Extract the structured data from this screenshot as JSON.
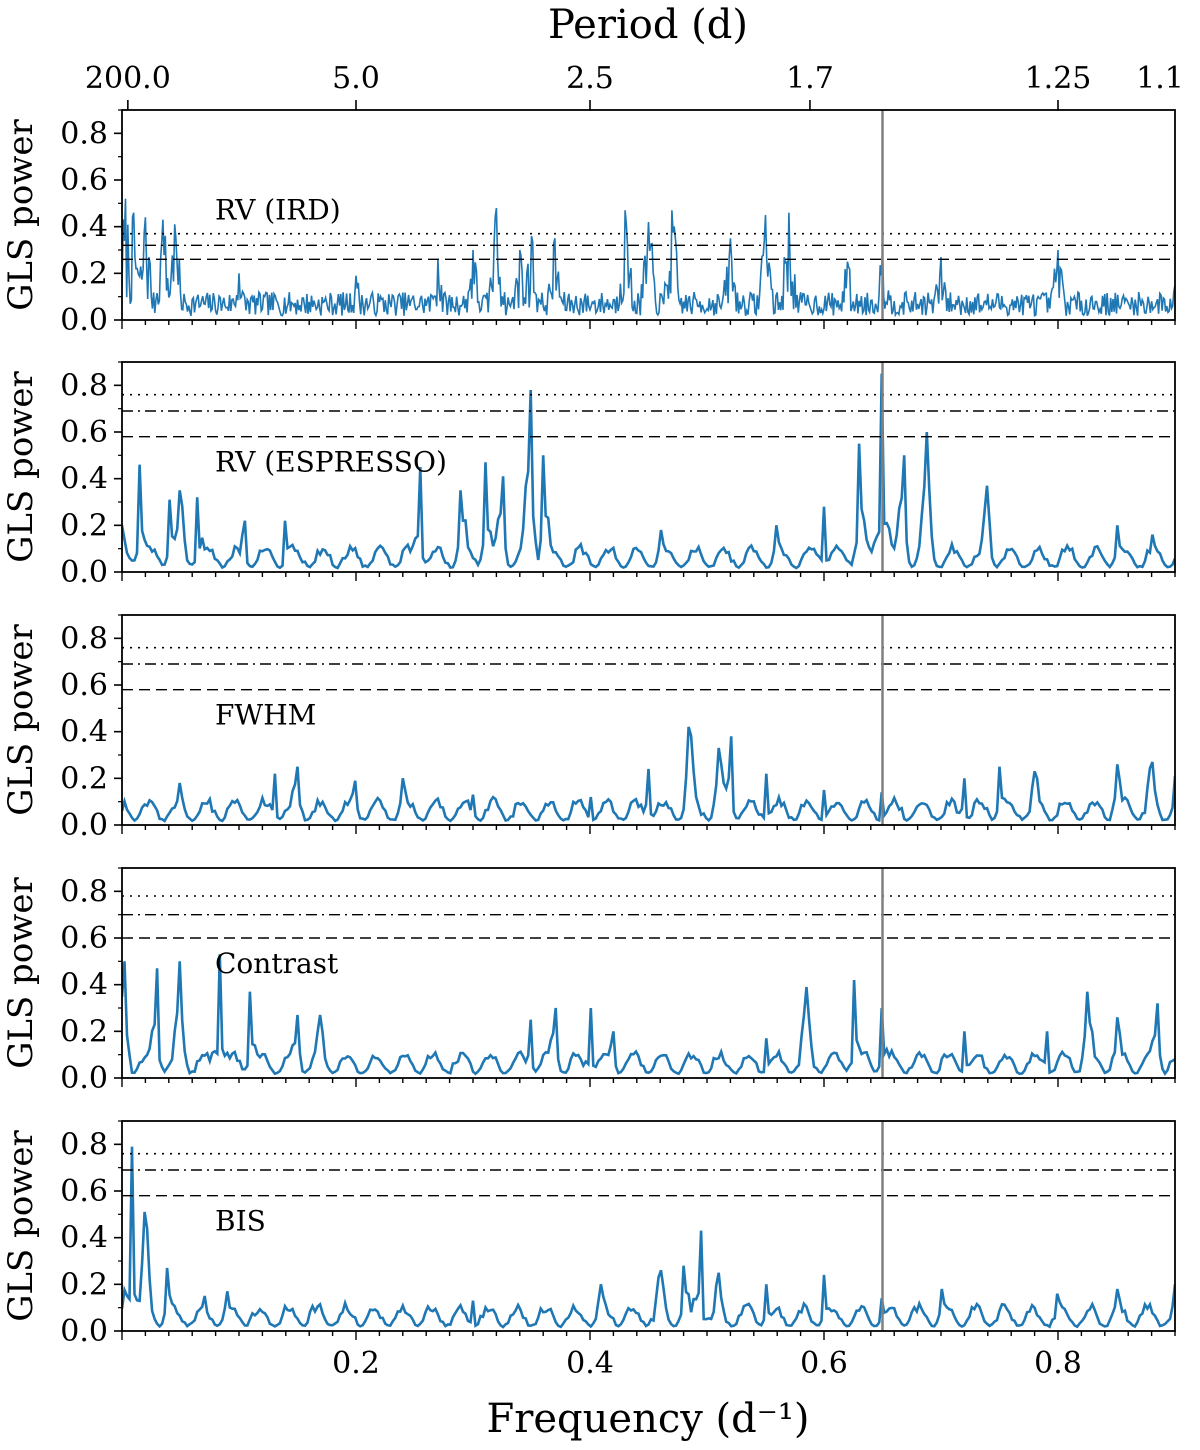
{
  "chart_data": {
    "type": "line",
    "top_axis": {
      "title": "Period (d)",
      "ticks": [
        {
          "label": "200.0",
          "freq": 0.005
        },
        {
          "label": "5.0",
          "freq": 0.2
        },
        {
          "label": "2.5",
          "freq": 0.4
        },
        {
          "label": "1.7",
          "freq": 0.588
        },
        {
          "label": "1.25",
          "freq": 0.8
        },
        {
          "label": "1.1",
          "freq": 0.909
        }
      ]
    },
    "x_axis": {
      "title": "Frequency (d⁻¹)",
      "xlim": [
        0.0,
        0.9
      ],
      "ticks": [
        {
          "label": "0.2",
          "value": 0.2
        },
        {
          "label": "0.4",
          "value": 0.4
        },
        {
          "label": "0.6",
          "value": 0.6
        },
        {
          "label": "0.8",
          "value": 0.8
        }
      ]
    },
    "y_axis": {
      "label": "GLS power",
      "ylim": [
        0.0,
        0.9
      ],
      "ticks": [
        "0.0",
        "0.2",
        "0.4",
        "0.6",
        "0.8"
      ]
    },
    "vertical_line_freq": 0.65,
    "line_color": "#1f77b4",
    "panels": [
      {
        "name": "RV (IRD)",
        "fap_levels": {
          "dashed": 0.26,
          "dashdot": 0.32,
          "dotted": 0.37
        },
        "peaks": [
          [
            0.003,
            0.52
          ],
          [
            0.01,
            0.46
          ],
          [
            0.02,
            0.44
          ],
          [
            0.035,
            0.43
          ],
          [
            0.045,
            0.41
          ],
          [
            0.1,
            0.2
          ],
          [
            0.2,
            0.19
          ],
          [
            0.27,
            0.26
          ],
          [
            0.3,
            0.3
          ],
          [
            0.32,
            0.48
          ],
          [
            0.34,
            0.3
          ],
          [
            0.35,
            0.36
          ],
          [
            0.37,
            0.35
          ],
          [
            0.43,
            0.47
          ],
          [
            0.45,
            0.42
          ],
          [
            0.47,
            0.47
          ],
          [
            0.52,
            0.35
          ],
          [
            0.55,
            0.45
          ],
          [
            0.57,
            0.46
          ],
          [
            0.62,
            0.25
          ],
          [
            0.65,
            0.3
          ],
          [
            0.7,
            0.27
          ],
          [
            0.8,
            0.3
          ],
          [
            0.9,
            0.15
          ]
        ]
      },
      {
        "name": "RV (ESPRESSO)",
        "fap_levels": {
          "dashed": 0.58,
          "dashdot": 0.69,
          "dotted": 0.76
        },
        "peaks": [
          [
            0.0,
            0.2
          ],
          [
            0.015,
            0.46
          ],
          [
            0.04,
            0.31
          ],
          [
            0.05,
            0.35
          ],
          [
            0.065,
            0.32
          ],
          [
            0.105,
            0.22
          ],
          [
            0.14,
            0.22
          ],
          [
            0.255,
            0.45
          ],
          [
            0.29,
            0.35
          ],
          [
            0.31,
            0.47
          ],
          [
            0.325,
            0.41
          ],
          [
            0.35,
            0.78
          ],
          [
            0.36,
            0.5
          ],
          [
            0.46,
            0.18
          ],
          [
            0.56,
            0.2
          ],
          [
            0.6,
            0.28
          ],
          [
            0.63,
            0.55
          ],
          [
            0.65,
            0.85
          ],
          [
            0.668,
            0.5
          ],
          [
            0.688,
            0.6
          ],
          [
            0.74,
            0.37
          ],
          [
            0.85,
            0.2
          ],
          [
            0.88,
            0.16
          ]
        ]
      },
      {
        "name": "FWHM",
        "fap_levels": {
          "dashed": 0.58,
          "dashdot": 0.69,
          "dotted": 0.76
        },
        "peaks": [
          [
            0.0,
            0.06
          ],
          [
            0.05,
            0.18
          ],
          [
            0.13,
            0.22
          ],
          [
            0.15,
            0.25
          ],
          [
            0.2,
            0.19
          ],
          [
            0.24,
            0.2
          ],
          [
            0.3,
            0.13
          ],
          [
            0.4,
            0.12
          ],
          [
            0.45,
            0.24
          ],
          [
            0.485,
            0.42
          ],
          [
            0.51,
            0.33
          ],
          [
            0.52,
            0.38
          ],
          [
            0.55,
            0.22
          ],
          [
            0.6,
            0.15
          ],
          [
            0.65,
            0.14
          ],
          [
            0.72,
            0.2
          ],
          [
            0.75,
            0.25
          ],
          [
            0.78,
            0.23
          ],
          [
            0.85,
            0.26
          ],
          [
            0.88,
            0.27
          ],
          [
            0.9,
            0.21
          ]
        ]
      },
      {
        "name": "Contrast",
        "fap_levels": {
          "dashed": 0.6,
          "dashdot": 0.7,
          "dotted": 0.78
        },
        "peaks": [
          [
            0.002,
            0.5
          ],
          [
            0.03,
            0.47
          ],
          [
            0.05,
            0.5
          ],
          [
            0.083,
            0.53
          ],
          [
            0.11,
            0.37
          ],
          [
            0.15,
            0.27
          ],
          [
            0.17,
            0.27
          ],
          [
            0.35,
            0.25
          ],
          [
            0.37,
            0.3
          ],
          [
            0.4,
            0.3
          ],
          [
            0.42,
            0.2
          ],
          [
            0.55,
            0.17
          ],
          [
            0.585,
            0.39
          ],
          [
            0.625,
            0.42
          ],
          [
            0.65,
            0.3
          ],
          [
            0.72,
            0.2
          ],
          [
            0.79,
            0.2
          ],
          [
            0.825,
            0.37
          ],
          [
            0.85,
            0.26
          ],
          [
            0.885,
            0.32
          ],
          [
            0.9,
            0.08
          ]
        ]
      },
      {
        "name": "BIS",
        "fap_levels": {
          "dashed": 0.58,
          "dashdot": 0.69,
          "dotted": 0.76
        },
        "peaks": [
          [
            0.008,
            0.79
          ],
          [
            0.02,
            0.51
          ],
          [
            0.038,
            0.27
          ],
          [
            0.07,
            0.15
          ],
          [
            0.09,
            0.17
          ],
          [
            0.19,
            0.12
          ],
          [
            0.3,
            0.13
          ],
          [
            0.41,
            0.2
          ],
          [
            0.46,
            0.26
          ],
          [
            0.48,
            0.28
          ],
          [
            0.494,
            0.43
          ],
          [
            0.51,
            0.25
          ],
          [
            0.55,
            0.2
          ],
          [
            0.6,
            0.24
          ],
          [
            0.65,
            0.14
          ],
          [
            0.7,
            0.18
          ],
          [
            0.8,
            0.16
          ],
          [
            0.85,
            0.18
          ],
          [
            0.9,
            0.2
          ]
        ]
      }
    ]
  }
}
